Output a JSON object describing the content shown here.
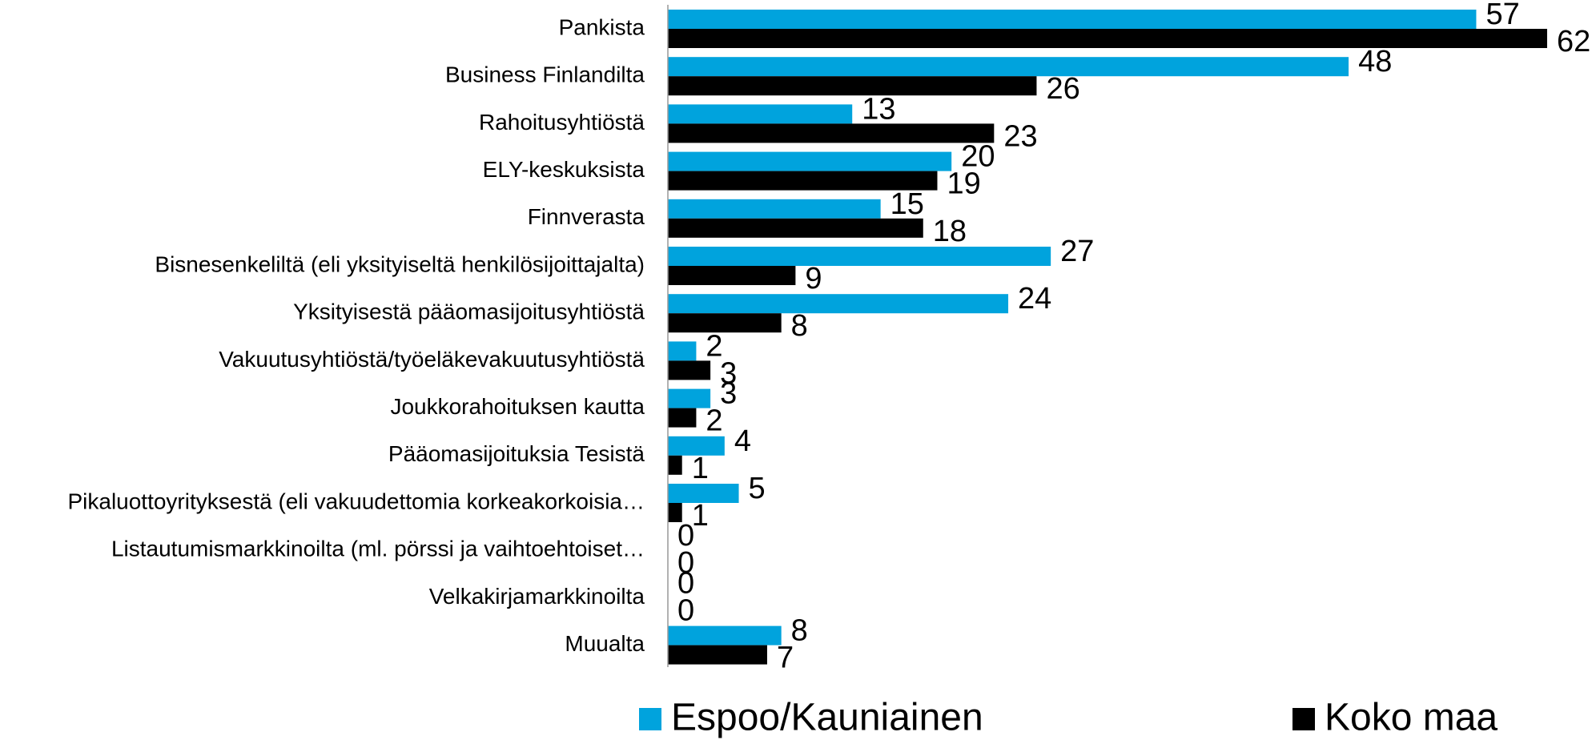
{
  "chart_data": {
    "type": "barh",
    "categories": [
      "Pankista",
      "Business Finlandilta",
      "Rahoitusyhtiöstä",
      "ELY-keskuksista",
      "Finnverasta",
      "Bisnesenkeliltä (eli yksityiseltä henkilösijoittajalta)",
      "Yksityisestä pääomasijoitusyhtiöstä",
      "Vakuutusyhtiöstä/työeläkevakuutusyhtiöstä",
      "Joukkorahoituksen kautta",
      "Pääomasijoituksia Tesistä",
      "Pikaluottoyrityksestä (eli vakuudettomia korkeakorkoisia…",
      "Listautumismarkkinoilta (ml. pörssi ja vaihtoehtoiset…",
      "Velkakirjamarkkinoilta",
      "Muualta"
    ],
    "series": [
      {
        "name": "Espoo/Kauniainen",
        "color": "#00a3dd",
        "values": [
          57,
          48,
          13,
          20,
          15,
          27,
          24,
          2,
          3,
          4,
          5,
          0,
          0,
          8
        ]
      },
      {
        "name": "Koko maa",
        "color": "#000000",
        "values": [
          62,
          26,
          23,
          19,
          18,
          9,
          8,
          3,
          2,
          1,
          1,
          0,
          0,
          7
        ]
      }
    ],
    "legend": "bottom"
  }
}
